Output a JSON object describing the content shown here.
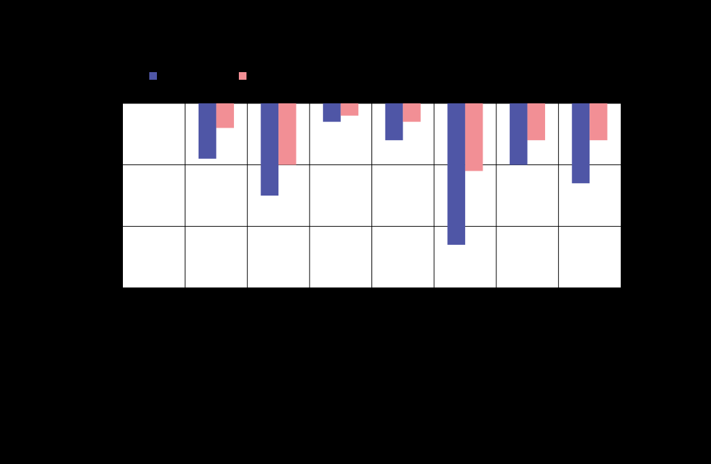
{
  "chart_data": {
    "type": "bar",
    "series": [
      {
        "color": "#4f56a6",
        "values": [
          0,
          -0.9,
          -1.5,
          -0.3,
          -0.6,
          -2.3,
          -1.0,
          -1.3
        ]
      },
      {
        "color": "#f28f95",
        "values": [
          0,
          -0.4,
          -1.0,
          -0.2,
          -0.3,
          -1.1,
          -0.6,
          -0.6
        ]
      }
    ],
    "ylim": [
      -3,
      0
    ],
    "yticks": [
      -3,
      -2,
      -1,
      0
    ],
    "grid": true
  }
}
